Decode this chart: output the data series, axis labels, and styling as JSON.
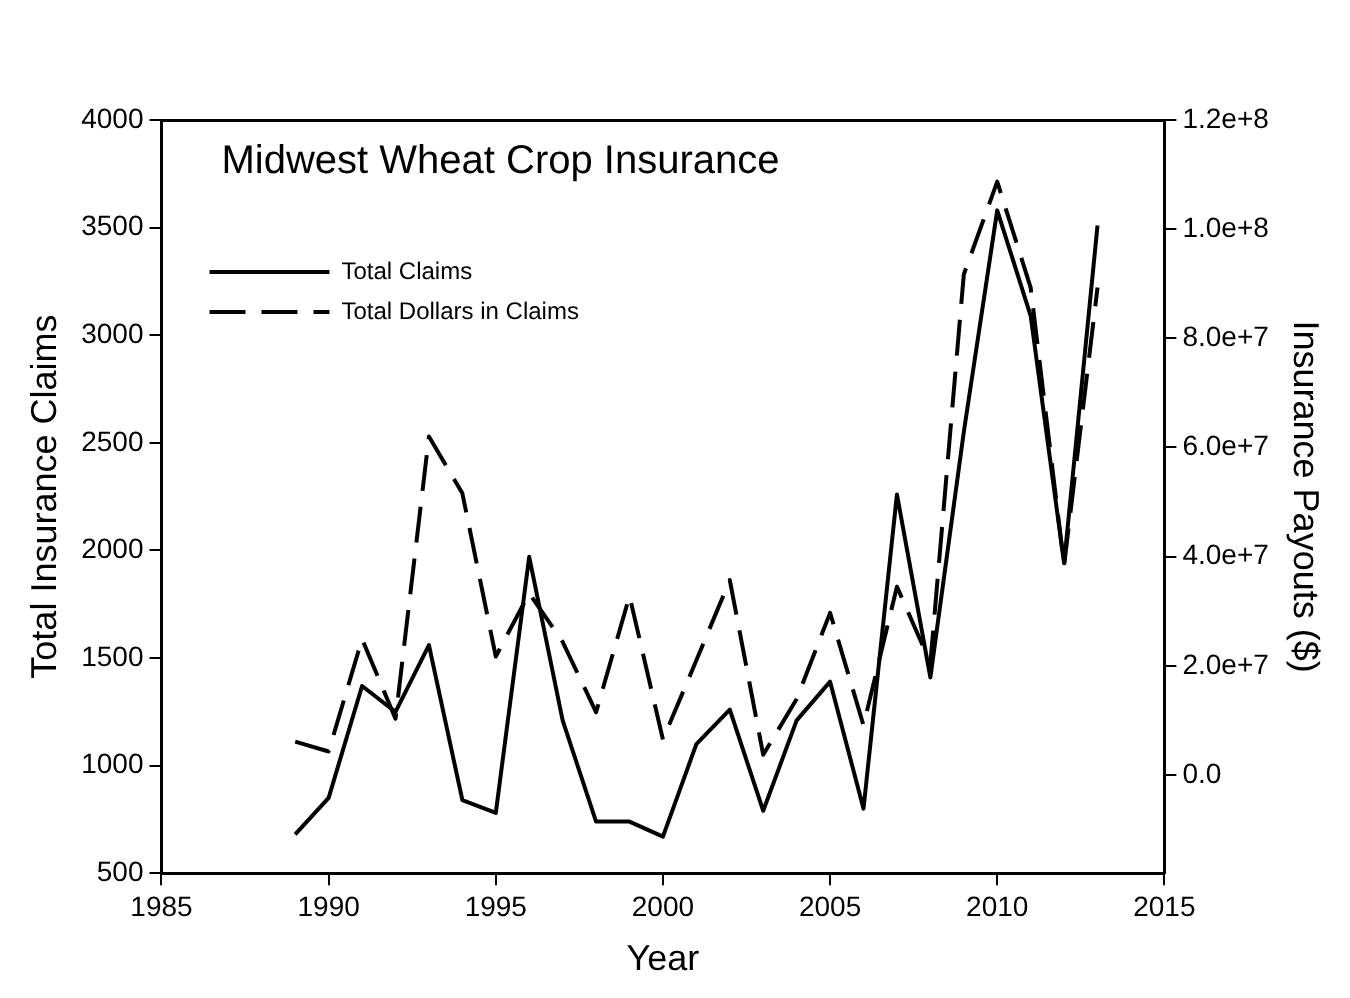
{
  "chart_data": {
    "type": "line",
    "title": "Midwest Wheat Crop Insurance",
    "xlabel": "Year",
    "ylabel": "Total Insurance Claims",
    "y2label": "Insurance Payouts ($)",
    "x": [
      1989,
      1990,
      1991,
      1992,
      1993,
      1994,
      1995,
      1996,
      1997,
      1998,
      1999,
      2000,
      2001,
      2002,
      2003,
      2004,
      2005,
      2006,
      2007,
      2008,
      2009,
      2010,
      2011,
      2012,
      2013
    ],
    "series": [
      {
        "name": "Total Claims",
        "color": "#000000",
        "line_style": "solid",
        "values": [
          680,
          850,
          1370,
          1250,
          1560,
          840,
          780,
          1970,
          1210,
          740,
          740,
          670,
          1100,
          1260,
          790,
          1210,
          1390,
          800,
          2260,
          1410,
          2550,
          3580,
          3090,
          1940,
          3510
        ]
      },
      {
        "name": "Total Dollars in Claims",
        "color": "#000000",
        "line_style": "dashed",
        "axis": "y2",
        "values": [
          6100000,
          4300000,
          24900000,
          10300000,
          62000000,
          51600000,
          21700000,
          33300000,
          24400000,
          11500000,
          32800000,
          6500000,
          21000000,
          35700000,
          3700000,
          13900000,
          29700000,
          9100000,
          34500000,
          20500000,
          91700000,
          108700000,
          89300000,
          38400000,
          89300000
        ]
      }
    ],
    "xlim": [
      1985,
      2015
    ],
    "xticks": [
      1985,
      1990,
      1995,
      2000,
      2005,
      2010,
      2015
    ],
    "ylim": [
      500,
      4000
    ],
    "yticks": [
      500,
      1000,
      1500,
      2000,
      2500,
      3000,
      3500,
      4000
    ],
    "y2lim": [
      -18000000,
      120000000
    ],
    "y2ticks": [
      {
        "value": 0,
        "label": "0.0"
      },
      {
        "value": 20000000,
        "label": "2.0e+7"
      },
      {
        "value": 40000000,
        "label": "4.0e+7"
      },
      {
        "value": 60000000,
        "label": "6.0e+7"
      },
      {
        "value": 80000000,
        "label": "8.0e+7"
      },
      {
        "value": 100000000,
        "label": "1.0e+8"
      },
      {
        "value": 120000000,
        "label": "1.2e+8"
      }
    ],
    "grid": false,
    "legend": "top left",
    "marker": "none"
  }
}
